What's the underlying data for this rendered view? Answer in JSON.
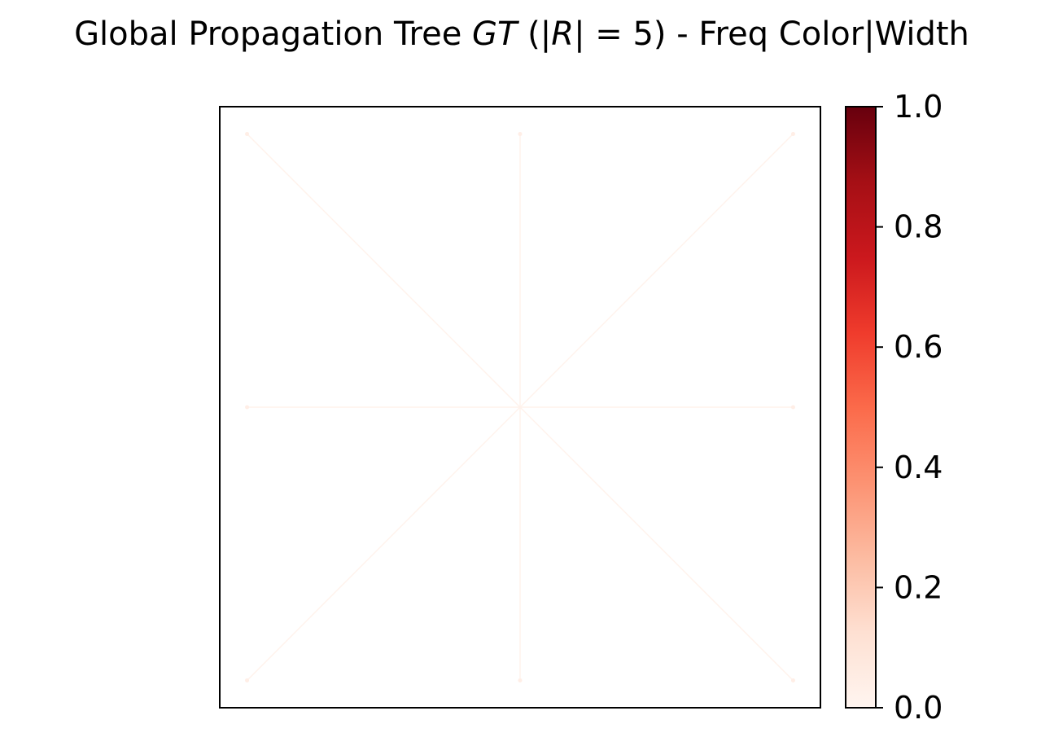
{
  "chart_data": {
    "type": "network",
    "title": {
      "prefix": "Global Propagation Tree ",
      "math_gt": "GT",
      "paren_open": " (|",
      "math_r": "R",
      "eq": "| =  5)",
      "suffix": " - Freq Color|Width"
    },
    "xlim": [
      -1.1,
      1.1
    ],
    "ylim": [
      -1.1,
      1.1
    ],
    "grid": false,
    "nodes": [
      {
        "id": "c",
        "x": 0,
        "y": 0
      },
      {
        "id": "n",
        "x": 0,
        "y": 1
      },
      {
        "id": "ne",
        "x": 1,
        "y": 1
      },
      {
        "id": "e",
        "x": 1,
        "y": 0
      },
      {
        "id": "se",
        "x": 1,
        "y": -1
      },
      {
        "id": "s",
        "x": 0,
        "y": -1
      },
      {
        "id": "sw",
        "x": -1,
        "y": -1
      },
      {
        "id": "w",
        "x": -1,
        "y": 0
      },
      {
        "id": "nw",
        "x": -1,
        "y": 1
      }
    ],
    "edges": [
      {
        "from": "c",
        "to": "n",
        "freq": 0.02
      },
      {
        "from": "c",
        "to": "ne",
        "freq": 0.02
      },
      {
        "from": "c",
        "to": "e",
        "freq": 0.02
      },
      {
        "from": "c",
        "to": "se",
        "freq": 0.02
      },
      {
        "from": "c",
        "to": "s",
        "freq": 0.02
      },
      {
        "from": "c",
        "to": "sw",
        "freq": 0.02
      },
      {
        "from": "c",
        "to": "w",
        "freq": 0.02
      },
      {
        "from": "c",
        "to": "nw",
        "freq": 0.02
      }
    ],
    "colorbar": {
      "cmap": "Reds",
      "range": [
        0.0,
        1.0
      ],
      "ticks": [
        {
          "value": 0.0,
          "label": "0.0"
        },
        {
          "value": 0.2,
          "label": "0.2"
        },
        {
          "value": 0.4,
          "label": "0.4"
        },
        {
          "value": 0.6,
          "label": "0.6"
        },
        {
          "value": 0.8,
          "label": "0.8"
        },
        {
          "value": 1.0,
          "label": "1.0"
        }
      ],
      "stops": [
        "#fff5f0",
        "#fee0d2",
        "#fcbba1",
        "#fc9272",
        "#fb6a4a",
        "#ef3b2c",
        "#cb181d",
        "#a50f15",
        "#67000d"
      ]
    }
  }
}
